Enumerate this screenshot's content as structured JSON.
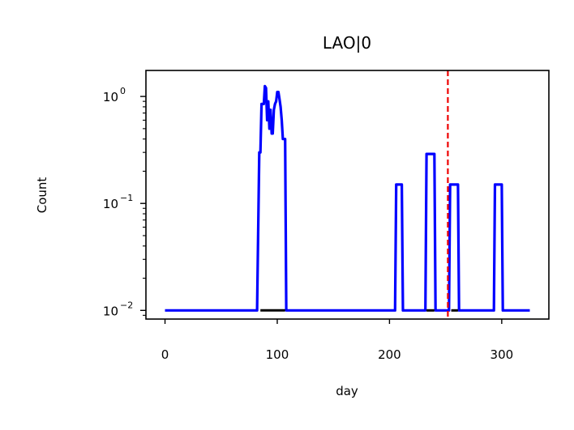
{
  "chart_data": {
    "type": "line",
    "title": "LAO|0",
    "xlabel": "day",
    "ylabel": "Count",
    "xlim": [
      -17,
      342
    ],
    "ylim": [
      0.0083,
      1.75
    ],
    "yscale": "log",
    "grid": false,
    "x_ticks": [
      0,
      100,
      200,
      300
    ],
    "x_tick_labels": [
      "0",
      "100",
      "200",
      "300"
    ],
    "y_ticks": [
      0.01,
      0.1,
      1
    ],
    "y_tick_labels": [
      {
        "base": "10",
        "exp": "−2"
      },
      {
        "base": "10",
        "exp": "−1"
      },
      {
        "base": "10",
        "exp": "0"
      }
    ],
    "series": [
      {
        "color": "#0000ff",
        "x": [
          0,
          82,
          84,
          85,
          86,
          88,
          89,
          90,
          91,
          92,
          93,
          94,
          95,
          96,
          97,
          98,
          99,
          100,
          101,
          102,
          103,
          104,
          105,
          106,
          107,
          108,
          109,
          110,
          111,
          205,
          206,
          211,
          212,
          232,
          233,
          240,
          241,
          253,
          254,
          261,
          262,
          293,
          294,
          300,
          301,
          325
        ],
        "y": [
          0.01,
          0.01,
          0.3,
          0.3,
          0.85,
          0.85,
          1.25,
          1.2,
          0.6,
          0.9,
          0.5,
          0.75,
          0.45,
          0.45,
          0.75,
          0.85,
          0.9,
          1.1,
          1.1,
          0.95,
          0.8,
          0.6,
          0.4,
          0.4,
          0.4,
          0.01,
          0.01,
          0.01,
          0.01,
          0.01,
          0.15,
          0.15,
          0.01,
          0.01,
          0.29,
          0.29,
          0.01,
          0.01,
          0.15,
          0.15,
          0.01,
          0.01,
          0.15,
          0.15,
          0.01,
          0.01
        ]
      }
    ],
    "black_segments": [
      [
        85,
        107
      ],
      [
        233,
        240
      ],
      [
        255,
        261
      ]
    ],
    "vline": {
      "x": 252,
      "color": "#ee0000",
      "style": "dashed"
    }
  }
}
